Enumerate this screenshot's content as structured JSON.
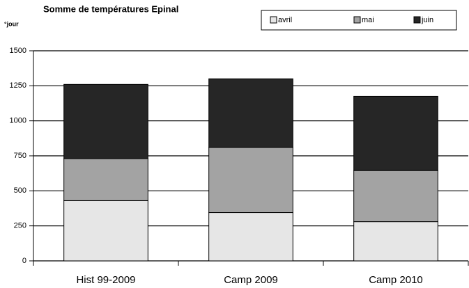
{
  "chart_data": {
    "type": "stacked_bar",
    "title": "Somme de températures Epinal",
    "y_label": "°jour",
    "categories": [
      "Hist 99-2009",
      "Camp 2009",
      "Camp 2010"
    ],
    "series": [
      {
        "name": "avril",
        "color": "#e6e6e6",
        "values": [
          430,
          345,
          280
        ]
      },
      {
        "name": "mai",
        "color": "#a3a3a3",
        "values": [
          300,
          465,
          365
        ]
      },
      {
        "name": "juin",
        "color": "#262626",
        "values": [
          530,
          490,
          530
        ]
      }
    ],
    "ylim": [
      0,
      1500
    ],
    "yticks": [
      0,
      250,
      500,
      750,
      1000,
      1250,
      1500
    ],
    "grid": true,
    "legend": "top-right"
  }
}
